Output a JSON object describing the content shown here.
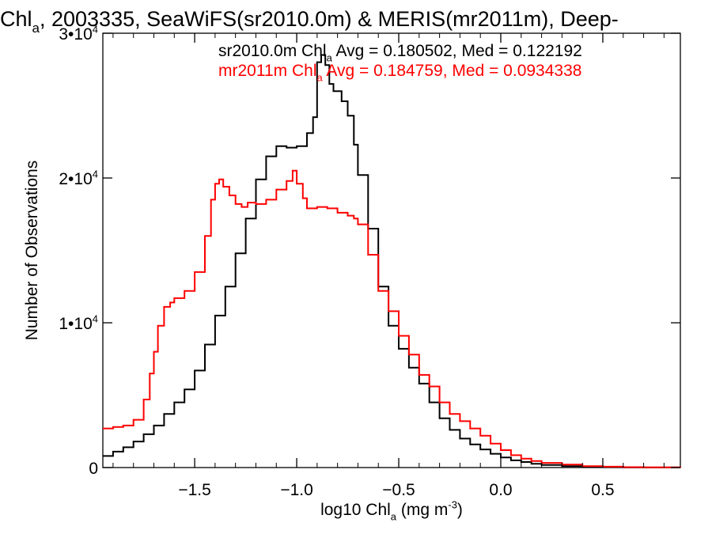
{
  "chart_data": {
    "type": "line",
    "title": "Chl_a, 2003335, SeaWiFS(sr2010.0m) & MERIS(mr2011m), Deep-",
    "xlabel": "log10 Chl_a (mg m^-3)",
    "ylabel": "Number of Observations",
    "xlim": [
      -1.95,
      0.88
    ],
    "ylim": [
      0,
      30000
    ],
    "x_ticks": [
      -1.5,
      -1.0,
      -0.5,
      0.0,
      0.5
    ],
    "x_tick_labels": [
      "−1.5",
      "−1.0",
      "−0.5",
      "0.0",
      "0.5"
    ],
    "y_ticks": [
      0,
      10000,
      20000,
      30000
    ],
    "y_tick_labels": [
      "0",
      "1•10^4",
      "2•10^4",
      "3•10^4"
    ],
    "grid": false,
    "legend": [
      {
        "text": "sr2010.0m Chl_a Avg = 0.180502, Med = 0.122192",
        "color": "#000000"
      },
      {
        "text": "mr2011m Chl_a Avg = 0.184759, Med = 0.0934338",
        "color": "#ff0000"
      }
    ],
    "series": [
      {
        "color": "#000000",
        "x": [
          -1.95,
          -1.9,
          -1.85,
          -1.8,
          -1.75,
          -1.7,
          -1.65,
          -1.6,
          -1.55,
          -1.5,
          -1.45,
          -1.4,
          -1.35,
          -1.3,
          -1.25,
          -1.2,
          -1.15,
          -1.1,
          -1.05,
          -1.0,
          -0.95,
          -0.92,
          -0.9,
          -0.88,
          -0.86,
          -0.84,
          -0.82,
          -0.8,
          -0.78,
          -0.75,
          -0.72,
          -0.7,
          -0.65,
          -0.6,
          -0.55,
          -0.5,
          -0.45,
          -0.4,
          -0.35,
          -0.3,
          -0.25,
          -0.2,
          -0.15,
          -0.1,
          -0.05,
          0.0,
          0.05,
          0.1,
          0.15,
          0.2,
          0.3,
          0.4,
          0.5,
          0.6,
          0.7,
          0.88
        ],
        "y": [
          800,
          1100,
          1400,
          1800,
          2300,
          2900,
          3700,
          4500,
          5400,
          6700,
          8500,
          10500,
          12500,
          14800,
          17200,
          19900,
          21500,
          22200,
          22100,
          22200,
          23100,
          24200,
          28000,
          28500,
          27800,
          26500,
          26000,
          26000,
          25300,
          24300,
          22300,
          20200,
          16500,
          12500,
          9800,
          8200,
          6900,
          5800,
          4500,
          3400,
          2600,
          2000,
          1600,
          1250,
          950,
          700,
          500,
          380,
          260,
          180,
          100,
          50,
          25,
          15,
          8,
          0
        ]
      },
      {
        "color": "#ff0000",
        "x": [
          -1.95,
          -1.9,
          -1.85,
          -1.8,
          -1.75,
          -1.72,
          -1.7,
          -1.68,
          -1.65,
          -1.62,
          -1.6,
          -1.55,
          -1.5,
          -1.45,
          -1.42,
          -1.4,
          -1.38,
          -1.36,
          -1.33,
          -1.3,
          -1.27,
          -1.24,
          -1.2,
          -1.15,
          -1.1,
          -1.05,
          -1.02,
          -1.0,
          -0.97,
          -0.95,
          -0.9,
          -0.85,
          -0.8,
          -0.75,
          -0.72,
          -0.7,
          -0.65,
          -0.6,
          -0.55,
          -0.5,
          -0.45,
          -0.4,
          -0.35,
          -0.3,
          -0.25,
          -0.2,
          -0.15,
          -0.1,
          -0.05,
          0.0,
          0.05,
          0.1,
          0.15,
          0.2,
          0.3,
          0.4,
          0.5,
          0.6,
          0.7,
          0.88
        ],
        "y": [
          2700,
          2800,
          2900,
          3300,
          4700,
          6500,
          8000,
          9800,
          11100,
          11400,
          11700,
          12200,
          13500,
          16000,
          18500,
          19600,
          19900,
          19400,
          18800,
          18200,
          18000,
          18300,
          18200,
          18500,
          19200,
          19800,
          20500,
          19600,
          18600,
          17900,
          18000,
          17900,
          17600,
          17400,
          17200,
          16800,
          14700,
          12200,
          10800,
          9100,
          7800,
          6400,
          5600,
          4500,
          3700,
          3200,
          2700,
          2200,
          1650,
          1200,
          850,
          620,
          450,
          320,
          200,
          100,
          60,
          30,
          15,
          0
        ]
      }
    ]
  }
}
